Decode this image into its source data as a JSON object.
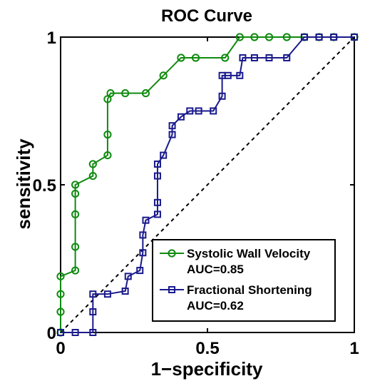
{
  "chart_data": {
    "type": "line",
    "title": "ROC Curve",
    "xlabel": "1−specificity",
    "ylabel": "sensitivity",
    "xlim": [
      0,
      1
    ],
    "ylim": [
      0,
      1
    ],
    "xticks": [
      0,
      0.5,
      1
    ],
    "yticks": [
      0,
      0.5,
      1
    ],
    "xtick_labels": [
      "0",
      "0.5",
      "1"
    ],
    "ytick_labels": [
      "0",
      "0.5",
      "1"
    ],
    "grid": false,
    "legend_position": "bottom-right",
    "series": [
      {
        "name": "Systolic Wall Velocity",
        "auc_label": "AUC=0.85",
        "color": "#0f8a0f",
        "marker": "circle",
        "x": [
          0,
          0,
          0,
          0,
          0.05,
          0.05,
          0.05,
          0.05,
          0.05,
          0.11,
          0.11,
          0.16,
          0.16,
          0.16,
          0.17,
          0.22,
          0.29,
          0.35,
          0.41,
          0.46,
          0.56,
          0.61,
          0.66,
          0.71,
          0.77,
          0.83,
          0.88,
          0.93,
          1
        ],
        "y": [
          0,
          0.07,
          0.13,
          0.19,
          0.21,
          0.29,
          0.4,
          0.47,
          0.5,
          0.53,
          0.57,
          0.6,
          0.67,
          0.79,
          0.81,
          0.81,
          0.81,
          0.87,
          0.93,
          0.93,
          0.93,
          1,
          1,
          1,
          1,
          1,
          1,
          1,
          1
        ]
      },
      {
        "name": "Fractional Shortening",
        "auc_label": "AUC=0.62",
        "color": "#1a1a8c",
        "marker": "square",
        "x": [
          0,
          0.05,
          0.11,
          0.11,
          0.11,
          0.16,
          0.22,
          0.23,
          0.27,
          0.28,
          0.28,
          0.29,
          0.33,
          0.33,
          0.33,
          0.33,
          0.35,
          0.38,
          0.38,
          0.41,
          0.44,
          0.47,
          0.52,
          0.55,
          0.55,
          0.57,
          0.61,
          0.62,
          0.66,
          0.71,
          0.77,
          0.83,
          0.88,
          0.93,
          1
        ],
        "y": [
          0,
          0,
          0,
          0.07,
          0.13,
          0.13,
          0.14,
          0.19,
          0.21,
          0.27,
          0.33,
          0.38,
          0.4,
          0.44,
          0.53,
          0.57,
          0.6,
          0.67,
          0.7,
          0.73,
          0.75,
          0.75,
          0.75,
          0.8,
          0.87,
          0.87,
          0.87,
          0.93,
          0.93,
          0.93,
          0.93,
          1,
          1,
          1,
          1
        ]
      }
    ],
    "reference_line": {
      "style": "dashed",
      "color": "#000000",
      "from": [
        0,
        0
      ],
      "to": [
        1,
        1
      ]
    }
  }
}
